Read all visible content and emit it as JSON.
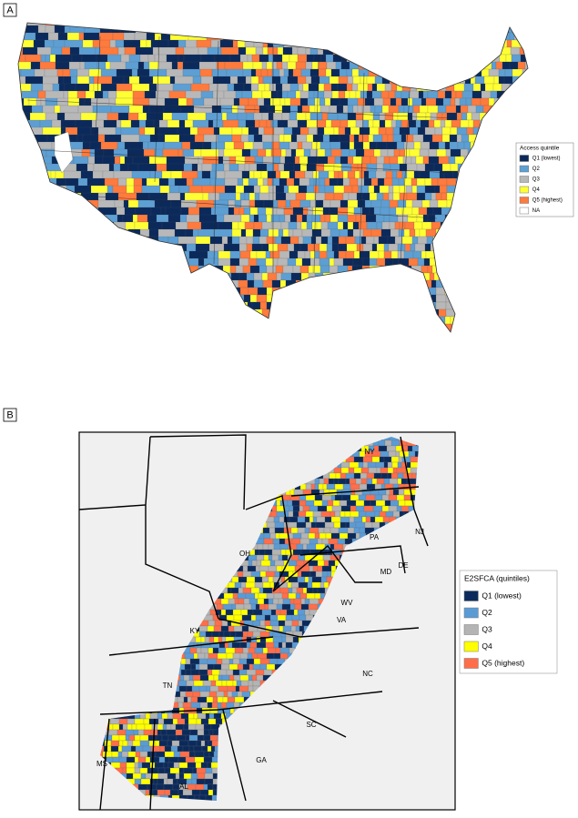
{
  "panels": [
    {
      "label": "A",
      "legend": {
        "title": "Access quintile",
        "items": [
          {
            "label": "Q1 (lowest)",
            "color": "#0b2a5b"
          },
          {
            "label": "Q2",
            "color": "#5d9fd3"
          },
          {
            "label": "Q3",
            "color": "#b8b8b8"
          },
          {
            "label": "Q4",
            "color": "#ffff33"
          },
          {
            "label": "Q5 (highest)",
            "color": "#ff7a3d"
          },
          {
            "label": "NA",
            "color": "#ffffff"
          }
        ]
      }
    },
    {
      "label": "B",
      "legend": {
        "title": "E2SFCA (quintiles)",
        "items": [
          {
            "label": "Q1 (lowest)",
            "color": "#0b2a5b"
          },
          {
            "label": "Q2",
            "color": "#5b9bd5"
          },
          {
            "label": "Q3",
            "color": "#b4b4b4"
          },
          {
            "label": "Q4",
            "color": "#ffff00"
          },
          {
            "label": "Q5 (highest)",
            "color": "#ff6e4a"
          }
        ]
      },
      "state_labels": [
        "NY",
        "PA",
        "NJ",
        "OH",
        "MD",
        "DE",
        "WV",
        "VA",
        "KY",
        "NC",
        "TN",
        "SC",
        "MS",
        "AL",
        "GA"
      ]
    }
  ]
}
